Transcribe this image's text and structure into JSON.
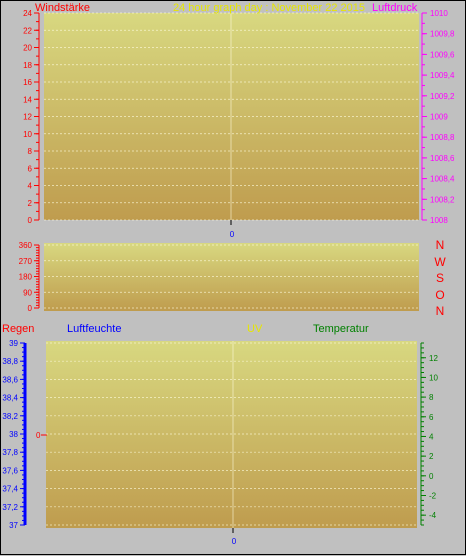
{
  "chart_data": [
    {
      "type": "line",
      "title": "24 hour graph day : November 22 2015",
      "left_axis": {
        "label": "Windstärke",
        "ticks": [
          "0",
          "2",
          "4",
          "6",
          "8",
          "10",
          "12",
          "14",
          "16",
          "18",
          "20",
          "22",
          "24"
        ],
        "range": [
          0,
          24
        ]
      },
      "right_axis": {
        "label": "Luftdruck",
        "ticks": [
          "1008",
          "1008,2",
          "1008,4",
          "1008,6",
          "1008,8",
          "1009",
          "1009,2",
          "1009,4",
          "1009,6",
          "1009,8",
          "1010"
        ],
        "range": [
          1008,
          1010
        ]
      },
      "x_ticks": [
        "0"
      ],
      "series": []
    },
    {
      "type": "line",
      "left_axis": {
        "ticks": [
          "0",
          "90",
          "180",
          "270",
          "360"
        ],
        "range": [
          0,
          360
        ]
      },
      "compass_labels": [
        "N",
        "W",
        "S",
        "O",
        "N"
      ],
      "x_ticks": [],
      "series": []
    },
    {
      "type": "line",
      "legend": [
        "Regen",
        "Luftfeuchte",
        "UV",
        "Temperatur"
      ],
      "left_axis": {
        "ticks": [
          "37",
          "37,2",
          "37,4",
          "37,6",
          "37,8",
          "38",
          "38,2",
          "38,4",
          "38,6",
          "38,8",
          "39"
        ],
        "range": [
          37,
          39
        ]
      },
      "right_axis": {
        "ticks": [
          "-4",
          "-2",
          "0",
          "2",
          "4",
          "6",
          "8",
          "10",
          "12"
        ],
        "range": [
          -5,
          13.5
        ]
      },
      "rain_marker": "0",
      "x_ticks": [
        "0"
      ],
      "series": []
    }
  ],
  "colors": {
    "windstaerke": "#ff0000",
    "title": "#e6e600",
    "luftdruck": "#ff00ff",
    "regen": "#ff0000",
    "luftfeuchte": "#0000ff",
    "uv": "#e6e600",
    "temperatur": "#008000",
    "compass": "#ff0000",
    "xtick": "#0000ff",
    "plot_top": "#d8d880",
    "plot_bottom": "#bf9c4e"
  }
}
